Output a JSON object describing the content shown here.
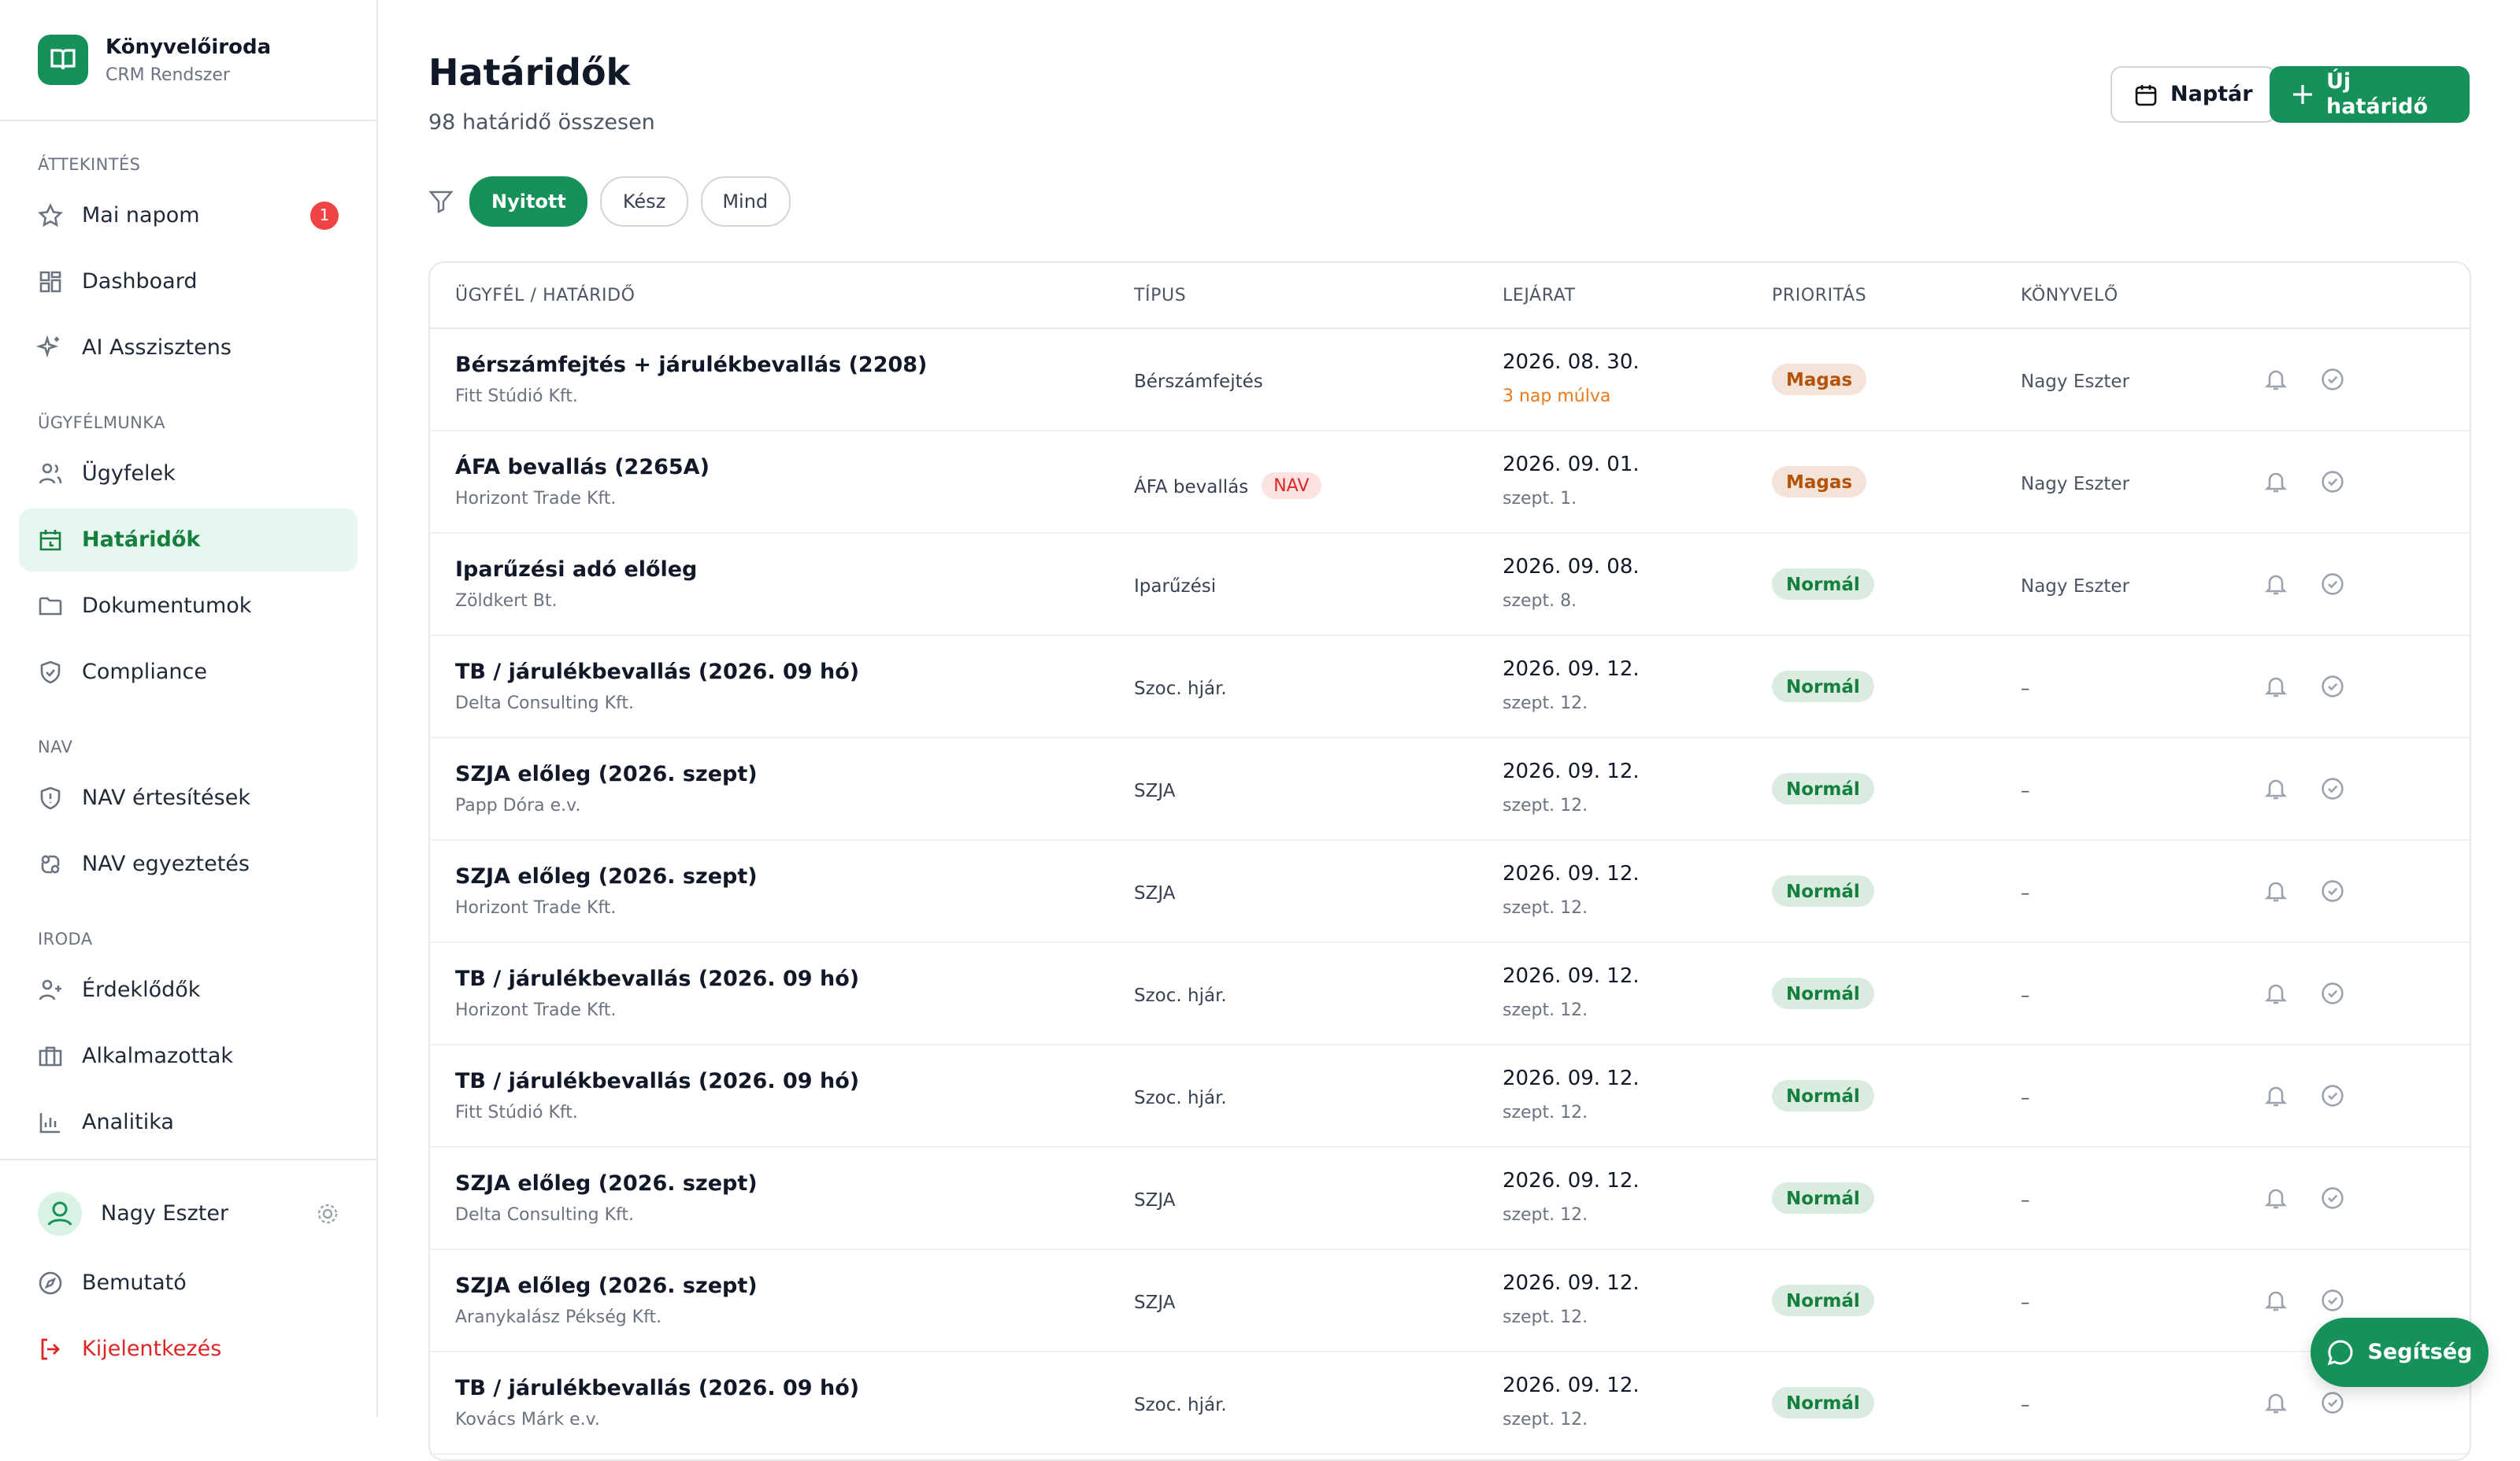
{
  "sidebar": {
    "brand": {
      "title": "Könyvelőiroda",
      "subtitle": "CRM Rendszer"
    },
    "sections": [
      {
        "label": "ÁTTEKINTÉS",
        "items": [
          {
            "label": "Mai napom",
            "badge": "1"
          },
          {
            "label": "Dashboard"
          },
          {
            "label": "AI Asszisztens"
          }
        ]
      },
      {
        "label": "ÜGYFÉLMUNKA",
        "items": [
          {
            "label": "Ügyfelek"
          },
          {
            "label": "Határidők",
            "active": true
          },
          {
            "label": "Dokumentumok"
          },
          {
            "label": "Compliance"
          }
        ]
      },
      {
        "label": "NAV",
        "items": [
          {
            "label": "NAV értesítések"
          },
          {
            "label": "NAV egyeztetés"
          }
        ]
      },
      {
        "label": "IRODA",
        "items": [
          {
            "label": "Érdeklődők"
          },
          {
            "label": "Alkalmazottak"
          },
          {
            "label": "Analitika"
          }
        ]
      }
    ],
    "user": {
      "name": "Nagy Eszter"
    },
    "footer": [
      "Bemutató",
      "Kijelentkezés"
    ]
  },
  "header": {
    "title": "Határidők",
    "subtitle": "98 határidő összesen",
    "buttons": [
      "Naptár",
      "Új határidő"
    ]
  },
  "filters": [
    {
      "label": "Nyitott",
      "active": true
    },
    {
      "label": "Kész"
    },
    {
      "label": "Mind"
    }
  ],
  "table": {
    "columns": [
      "ÜGYFÉL / HATÁRIDŐ",
      "TÍPUS",
      "LEJÁRAT",
      "PRIORITÁS",
      "KÖNYVELŐ"
    ],
    "rows": [
      {
        "title": "Bérszámfejtés + járulékbevallás (2208)",
        "client": "Fitt Stúdió Kft.",
        "type": "Bérszámfejtés",
        "date": "2026. 08. 30.",
        "note": "3 nap múlva",
        "note_color": "#ea7a1a",
        "priority": "Magas",
        "priority_color": "#b45309",
        "accountant": "Nagy Eszter"
      },
      {
        "title": "ÁFA bevallás (2265A)",
        "client": "Horizont Trade Kft.",
        "type": "ÁFA bevallás",
        "tag": "NAV",
        "date": "2026. 09. 01.",
        "note": "szept. 1.",
        "priority": "Magas",
        "priority_color": "#b45309",
        "accountant": "Nagy Eszter"
      },
      {
        "title": "Iparűzési adó előleg",
        "client": "Zöldkert Bt.",
        "type": "Iparűzési",
        "date": "2026. 09. 08.",
        "note": "szept. 8.",
        "priority": "Normál",
        "priority_color": "#15803d",
        "accountant": "Nagy Eszter"
      },
      {
        "title": "TB / járulékbevallás (2026. 09 hó)",
        "client": "Delta Consulting Kft.",
        "type": "Szoc. hjár.",
        "date": "2026. 09. 12.",
        "note": "szept. 12.",
        "priority": "Normál",
        "priority_color": "#15803d",
        "accountant": "–"
      },
      {
        "title": "SZJA előleg (2026. szept)",
        "client": "Papp Dóra e.v.",
        "type": "SZJA",
        "date": "2026. 09. 12.",
        "note": "szept. 12.",
        "priority": "Normál",
        "priority_color": "#15803d",
        "accountant": "–"
      },
      {
        "title": "SZJA előleg (2026. szept)",
        "client": "Horizont Trade Kft.",
        "type": "SZJA",
        "date": "2026. 09. 12.",
        "note": "szept. 12.",
        "priority": "Normál",
        "priority_color": "#15803d",
        "accountant": "–"
      },
      {
        "title": "TB / járulékbevallás (2026. 09 hó)",
        "client": "Horizont Trade Kft.",
        "type": "Szoc. hjár.",
        "date": "2026. 09. 12.",
        "note": "szept. 12.",
        "priority": "Normál",
        "priority_color": "#15803d",
        "accountant": "–"
      },
      {
        "title": "TB / járulékbevallás (2026. 09 hó)",
        "client": "Fitt Stúdió Kft.",
        "type": "Szoc. hjár.",
        "date": "2026. 09. 12.",
        "note": "szept. 12.",
        "priority": "Normál",
        "priority_color": "#15803d",
        "accountant": "–"
      },
      {
        "title": "SZJA előleg (2026. szept)",
        "client": "Delta Consulting Kft.",
        "type": "SZJA",
        "date": "2026. 09. 12.",
        "note": "szept. 12.",
        "priority": "Normál",
        "priority_color": "#15803d",
        "accountant": "–"
      },
      {
        "title": "SZJA előleg (2026. szept)",
        "client": "Aranykalász Pékség Kft.",
        "type": "SZJA",
        "date": "2026. 09. 12.",
        "note": "szept. 12.",
        "priority": "Normál",
        "priority_color": "#15803d",
        "accountant": "–"
      },
      {
        "title": "TB / járulékbevallás (2026. 09 hó)",
        "client": "Kovács Márk e.v.",
        "type": "Szoc. hjár.",
        "date": "2026. 09. 12.",
        "note": "szept. 12.",
        "priority": "Normál",
        "priority_color": "#15803d",
        "accountant": "–"
      }
    ]
  },
  "help": "Segítség"
}
